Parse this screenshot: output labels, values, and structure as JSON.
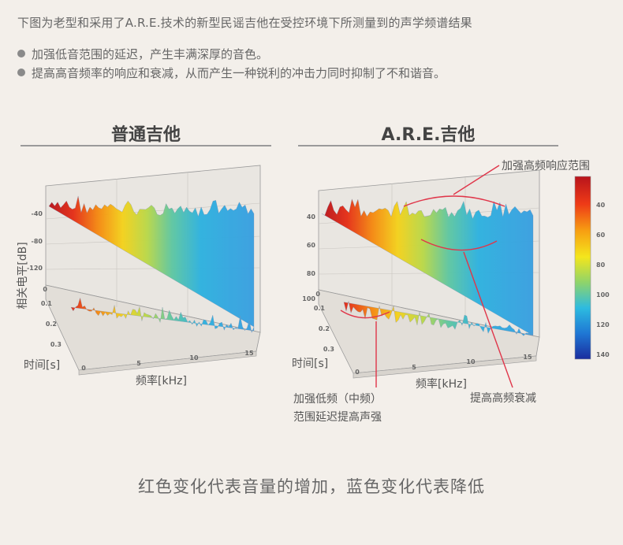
{
  "intro": "下图为老型和采用了A.R.E.技术的新型民谣吉他在受控环境下所测量到的声学频谱结果",
  "bullets": [
    "加强低音范围的延迟，产生丰满深厚的音色。",
    "提高高音频率的响应和衰减，从而产生一种锐利的冲击力同时抑制了不和谐音。"
  ],
  "footer": "红色变化代表音量的增加，蓝色变化代表降低",
  "colors": {
    "red": "#c8102e",
    "blue": "#1a5ec8",
    "annotation_line": "#e0364a"
  },
  "chart_data": [
    {
      "type": "surface",
      "title": "普通吉他",
      "xlabel": "频率[kHz]",
      "ylabel": "时间[s]",
      "zlabel": "相关电平[dB]",
      "x_ticks": [
        "0",
        "5",
        "10",
        "15"
      ],
      "y_ticks": [
        "0",
        "0.1",
        "0.2",
        "0.3"
      ],
      "z_ticks": [
        "-40",
        "-80",
        "-120"
      ]
    },
    {
      "type": "surface",
      "title": "A.R.E.吉他",
      "xlabel": "频率[kHz]",
      "ylabel": "时间[s]",
      "z_ticks": [
        "40",
        "60",
        "80",
        "100"
      ],
      "x_ticks": [
        "0",
        "5",
        "10",
        "15"
      ],
      "y_ticks": [
        "0",
        "0.1",
        "0.2",
        "0.3"
      ],
      "annotations": [
        "加强高频响应范围",
        "加强低频（中频）",
        "范围延迟提高声强",
        "提高高频衰减"
      ],
      "colorbar": {
        "ticks": [
          "40",
          "60",
          "80",
          "100",
          "120",
          "140"
        ]
      }
    }
  ]
}
